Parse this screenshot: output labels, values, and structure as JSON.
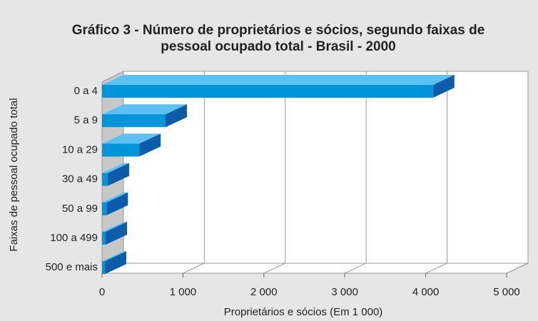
{
  "chart_data": {
    "type": "bar3d",
    "title": "Gráfico 3 - Número de proprietários e sócios, segundo faixas de",
    "subtitle": "pessoal ocupado total - Brasil - 2000",
    "x_label": "Proprietários e sócios (Em 1 000)",
    "y_label": "Faixas de pessoal ocupado total",
    "categories": [
      "0 a 4",
      "5 a 9",
      "10 a 29",
      "30 a 49",
      "50 a 99",
      "100 a 499",
      "500 e mais"
    ],
    "values": [
      4090,
      785,
      460,
      70,
      55,
      45,
      35
    ],
    "color": "#0094d9",
    "xlim": [
      0,
      5000
    ],
    "xticks": [
      0,
      {
        "value": 1000,
        "label": "1 000"
      },
      {
        "value": 2000,
        "label": "2 000"
      },
      {
        "value": 3000,
        "label": "3 000"
      },
      {
        "value": 4000,
        "label": "4 000"
      },
      {
        "value": 5000,
        "label": "5 000"
      }
    ],
    "grid": true
  }
}
